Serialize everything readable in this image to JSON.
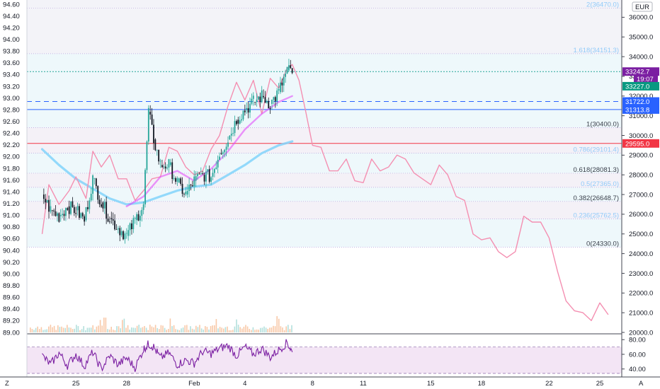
{
  "currency_badge": "EUR",
  "bottom_left_label": "Z",
  "bottom_right_label": "A",
  "colors": {
    "bull_candle": "#26a69a",
    "bear_candle": "#131722",
    "projection": "#f48fb1",
    "ma_fast": "#e040fb",
    "ma_slow": "#81d4fa",
    "rsi_line": "#7b1fa2",
    "rsi_band": "#f3e5f5",
    "red_line": "#f23645",
    "blue_tag": "#2962ff",
    "purple_tag": "#7b1fa2",
    "green_tag": "#089981",
    "teal_line": "#26a69a"
  },
  "chart_data": {
    "type": "line",
    "left_axis": {
      "ticks": [
        "94.60",
        "94.40",
        "94.20",
        "94.00",
        "93.80",
        "93.60",
        "93.40",
        "93.20",
        "93.00",
        "92.80",
        "92.60",
        "92.40",
        "92.20",
        "92.00",
        "91.80",
        "91.60",
        "91.40",
        "91.20",
        "91.00",
        "90.80",
        "90.60",
        "90.40",
        "90.20",
        "90.00",
        "89.80",
        "89.60",
        "89.40",
        "89.20",
        "89.00"
      ]
    },
    "right_axis": {
      "ticks": [
        "36000.0",
        "35000.0",
        "34000.0",
        "33000.0",
        "32000.0",
        "31000.0",
        "30000.0",
        "29000.0",
        "28000.0",
        "27000.0",
        "26000.0",
        "25000.0",
        "24000.0",
        "23000.0",
        "22000.0",
        "21000.0",
        "20000.0"
      ]
    },
    "rsi_axis": {
      "ticks": [
        "80.00",
        "60.00",
        "40.00"
      ],
      "ylim": [
        32,
        86
      ]
    },
    "x_axis": {
      "ticks": [
        "25",
        "28",
        "Feb",
        "4",
        "8",
        "11",
        "15",
        "18",
        "22",
        "25"
      ],
      "tick_day": [
        25,
        28,
        32,
        35,
        39,
        42,
        46,
        49,
        53,
        56
      ]
    },
    "fib_levels": [
      {
        "label": "2(36470.0)",
        "value": 36470.0
      },
      {
        "label": "1.618(34151.3)",
        "value": 34151.3
      },
      {
        "label": "1(30400.0)",
        "value": 30400.0
      },
      {
        "label": "0.786(29101.4)",
        "value": 29101.4
      },
      {
        "label": "0.618(28081.3)",
        "value": 28081.3
      },
      {
        "label": "0.5(27365.0)",
        "value": 27365.0
      },
      {
        "label": "0.382(26648.7)",
        "value": 26648.7
      },
      {
        "label": "0.236(25762.5)",
        "value": 25762.5
      },
      {
        "label": "0(24330.0)",
        "value": 24330.0
      }
    ],
    "price_tags": [
      {
        "label": "33242.7",
        "value": 33242.7,
        "color": "#7b1fa2"
      },
      {
        "label": "19:07",
        "value": 32880.0,
        "color": "#7b1fa2"
      },
      {
        "label": "33227.0",
        "value": 32500.0,
        "color": "#089981"
      },
      {
        "label": "31722.0",
        "value": 31722.0,
        "color": "#2962ff"
      },
      {
        "label": "31313.8",
        "value": 31313.8,
        "color": "#2962ff"
      },
      {
        "label": "29595.0",
        "value": 29595.0,
        "color": "#f23645"
      }
    ],
    "horizontal_lines": [
      {
        "value": 33242.7,
        "style": "dotted",
        "color": "#26a69a"
      },
      {
        "value": 31722.0,
        "style": "dashed",
        "color": "#2962ff"
      },
      {
        "value": 31313.8,
        "style": "solid",
        "color": "#2962ff"
      },
      {
        "value": 29595.0,
        "style": "solid",
        "color": "#f23645"
      }
    ],
    "series": [
      {
        "key": "price_close",
        "x_day": [
          23,
          23.5,
          24,
          24.5,
          25,
          25.5,
          26,
          26.5,
          27,
          27.5,
          28,
          28.5,
          29,
          29.3,
          29.6,
          30,
          30.5,
          31,
          31.5,
          32,
          32.5,
          33,
          33.5,
          34,
          34.5,
          35,
          35.5,
          36,
          36.5,
          37,
          37.5,
          37.8
        ],
        "values": [
          27000,
          26200,
          25900,
          26400,
          26200,
          25700,
          27800,
          26600,
          25800,
          25300,
          24900,
          25700,
          26500,
          31200,
          29800,
          28500,
          28500,
          27600,
          27000,
          27700,
          28000,
          27900,
          29100,
          29800,
          30800,
          31300,
          31700,
          32000,
          31600,
          32200,
          33300,
          33242.7
        ]
      },
      {
        "key": "projection",
        "x_day": [
          23,
          23.4,
          24,
          24.6,
          25,
          25.6,
          26,
          26.5,
          27,
          27.5,
          28,
          28.5,
          29,
          29.5,
          30,
          30.5,
          31,
          31.5,
          32,
          32.5,
          33,
          33.5,
          34,
          34.5,
          35,
          35.5,
          36,
          36.5,
          37,
          37.5,
          37.8,
          38.2,
          38.6,
          39,
          39.5,
          40,
          40.5,
          41,
          41.5,
          42,
          42.5,
          43,
          43.5,
          44,
          44.5,
          45,
          45.5,
          46,
          46.5,
          47,
          47.5,
          48,
          48.5,
          49,
          49.5,
          50,
          50.5,
          51,
          51.5,
          52,
          52.5,
          53,
          53.5,
          54,
          54.5,
          55,
          55.5,
          56,
          56.5
        ],
        "values": [
          25000,
          27500,
          26500,
          27200,
          27900,
          26800,
          29200,
          28400,
          29000,
          27800,
          27800,
          26700,
          27200,
          27800,
          27900,
          29400,
          29200,
          28400,
          28000,
          28200,
          29300,
          30000,
          31500,
          32700,
          31800,
          32800,
          31100,
          32900,
          32400,
          33400,
          33600,
          32800,
          31200,
          29500,
          29400,
          28200,
          28200,
          28800,
          27700,
          27600,
          28800,
          28200,
          28400,
          29000,
          28800,
          28100,
          27800,
          27500,
          28500,
          28000,
          26900,
          26700,
          25000,
          24700,
          24800,
          24100,
          23800,
          24100,
          25900,
          25600,
          25600,
          24800,
          23100,
          21600,
          21100,
          21000,
          20600,
          21500,
          20900
        ]
      },
      {
        "key": "ma_fast",
        "x_day": [
          28,
          29,
          30,
          31,
          32,
          33,
          34,
          35,
          36,
          37,
          37.8
        ],
        "values": [
          26400,
          26900,
          27900,
          28200,
          27700,
          28300,
          29200,
          30300,
          31100,
          31700,
          32000
        ]
      },
      {
        "key": "ma_slow",
        "x_day": [
          23,
          24,
          25,
          26,
          27,
          28,
          29,
          30,
          31,
          32,
          33,
          34,
          35,
          36,
          37,
          37.8
        ],
        "values": [
          29300,
          28500,
          27800,
          27300,
          26800,
          26500,
          26600,
          26900,
          27200,
          27400,
          27500,
          28000,
          28500,
          29100,
          29500,
          29700
        ]
      },
      {
        "key": "rsi",
        "x_day": [
          23,
          23.5,
          24,
          24.5,
          25,
          25.5,
          26,
          26.5,
          27,
          27.5,
          28,
          28.5,
          29,
          29.3,
          29.6,
          30,
          30.5,
          31,
          31.5,
          32,
          32.5,
          33,
          33.5,
          34,
          34.5,
          35,
          35.5,
          36,
          36.5,
          37,
          37.5,
          37.8
        ],
        "values": [
          58,
          46,
          62,
          45,
          60,
          44,
          63,
          40,
          58,
          46,
          55,
          42,
          67,
          74,
          70,
          55,
          62,
          46,
          52,
          48,
          64,
          61,
          68,
          72,
          58,
          70,
          60,
          68,
          56,
          66,
          76,
          63
        ]
      }
    ]
  }
}
